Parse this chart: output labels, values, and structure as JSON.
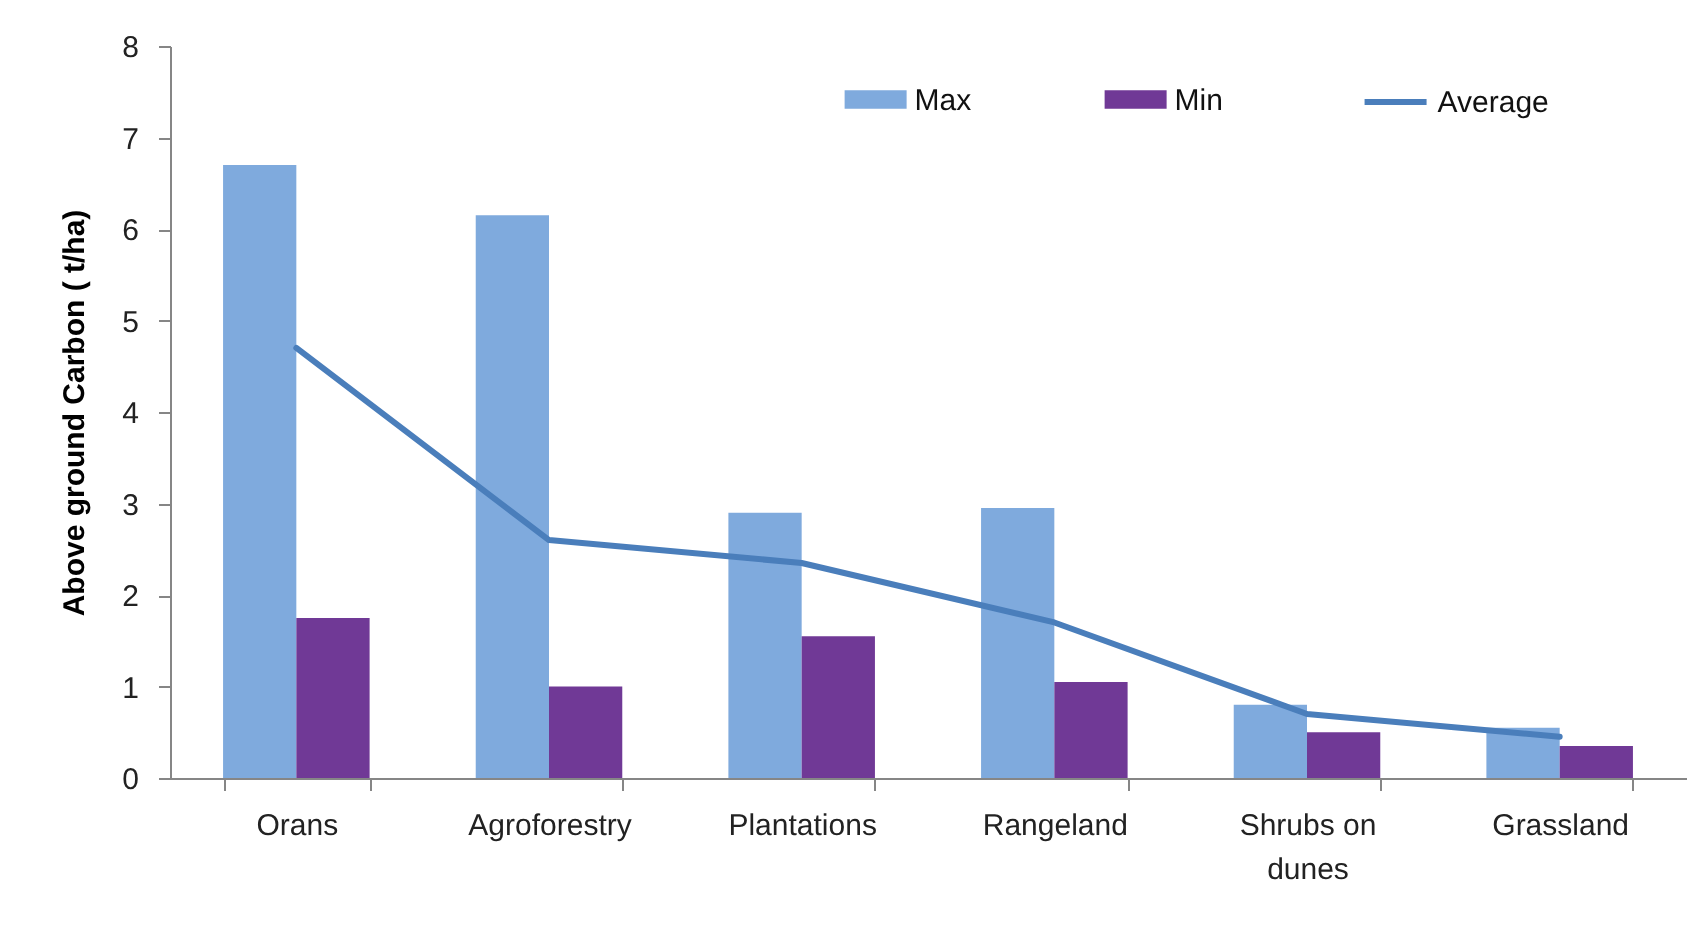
{
  "chart_data": {
    "type": "bar",
    "ylabel": "Above ground Carbon ( t/ha)",
    "categories": [
      "Orans",
      "Agroforestry",
      "Plantations",
      "Rangeland",
      "Shrubs on dunes",
      "Grassland"
    ],
    "series": [
      {
        "name": "Max",
        "color": "#7faadd",
        "values": [
          6.7,
          6.15,
          2.9,
          2.95,
          0.8,
          0.55
        ]
      },
      {
        "name": "Min",
        "color": "#703996",
        "values": [
          1.75,
          1.0,
          1.55,
          1.05,
          0.5,
          0.35
        ]
      },
      {
        "name": "Average",
        "type": "line",
        "color": "#4a7ebb",
        "values": [
          4.7,
          2.6,
          2.35,
          1.7,
          0.7,
          0.45
        ]
      }
    ],
    "ylim": [
      0,
      8
    ],
    "yticks": [
      0,
      1,
      2,
      3,
      4,
      5,
      6,
      7,
      8
    ],
    "grid": false,
    "legend": "top right",
    "marker": "none"
  }
}
